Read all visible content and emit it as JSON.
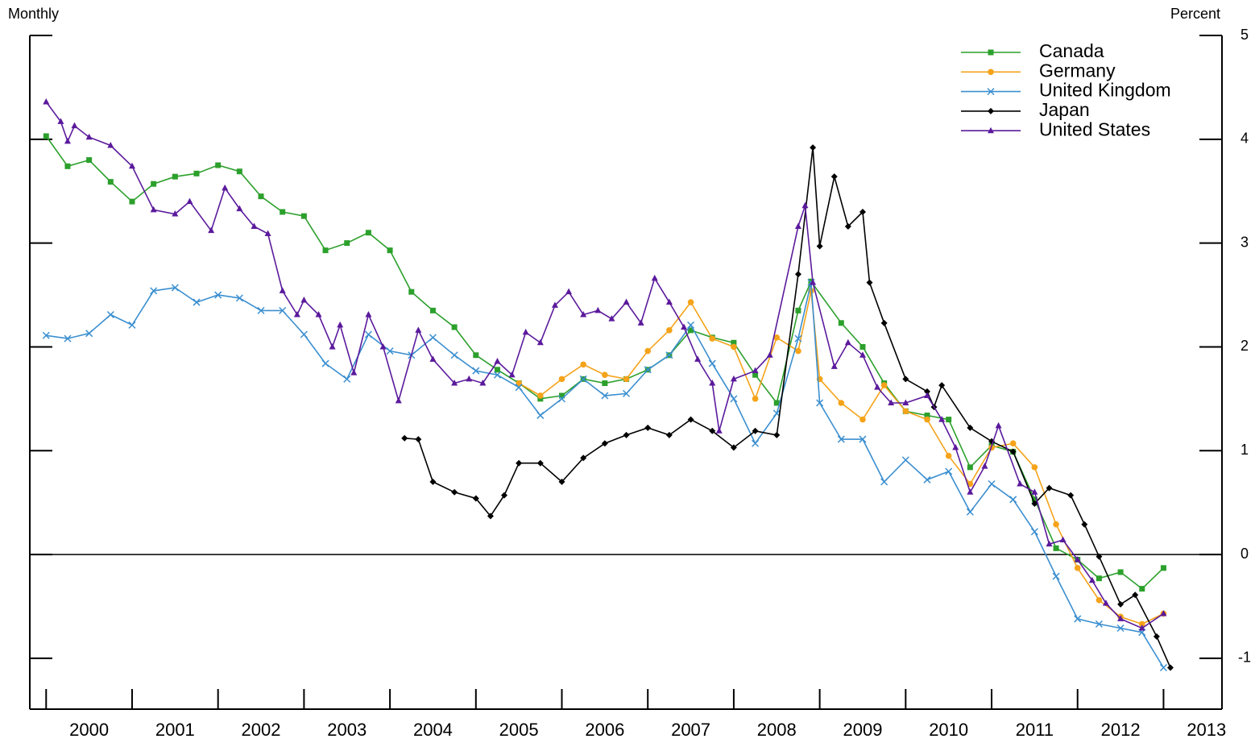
{
  "chart_data": {
    "type": "line",
    "subtitle_left": "Monthly",
    "y_axis_label": "Percent",
    "xlim": [
      1999.81,
      2013.68
    ],
    "xticks": [
      2000,
      2001,
      2002,
      2003,
      2004,
      2005,
      2006,
      2007,
      2008,
      2009,
      2010,
      2011,
      2012,
      2013
    ],
    "ylim": [
      -1.49,
      5
    ],
    "yticks": [
      -1,
      0,
      1,
      2,
      3,
      4,
      5
    ],
    "zero_line": true,
    "legend": "upper-right",
    "series": [
      {
        "name": "Canada",
        "color": "#2ca02c",
        "marker": "square",
        "x": [
          2000.0,
          2000.25,
          2000.5,
          2000.75,
          2001.0,
          2001.25,
          2001.5,
          2001.75,
          2002.0,
          2002.25,
          2002.5,
          2002.75,
          2003.0,
          2003.25,
          2003.5,
          2003.75,
          2004.0,
          2004.25,
          2004.5,
          2004.75,
          2005.0,
          2005.25,
          2005.5,
          2005.75,
          2006.0,
          2006.25,
          2006.5,
          2006.75,
          2007.0,
          2007.25,
          2007.5,
          2007.75,
          2008.0,
          2008.25,
          2008.5,
          2008.75,
          2008.9,
          2009.25,
          2009.5,
          2009.75,
          2010.0,
          2010.25,
          2010.5,
          2010.75,
          2011.0,
          2011.25,
          2011.5,
          2011.75,
          2012.0,
          2012.25,
          2012.5,
          2012.75,
          2013.0
        ],
        "values": [
          4.03,
          3.74,
          3.8,
          3.59,
          3.4,
          3.57,
          3.64,
          3.67,
          3.75,
          3.69,
          3.45,
          3.3,
          3.26,
          2.93,
          3.0,
          3.1,
          2.93,
          2.53,
          2.35,
          2.19,
          1.92,
          1.78,
          1.65,
          1.5,
          1.53,
          1.69,
          1.65,
          1.69,
          1.78,
          1.92,
          2.16,
          2.09,
          2.04,
          1.73,
          1.46,
          2.35,
          2.63,
          2.23,
          2.0,
          1.65,
          1.38,
          1.34,
          1.3,
          0.84,
          1.05,
          0.99,
          0.53,
          0.06,
          -0.05,
          -0.23,
          -0.17,
          -0.33,
          -0.13
        ]
      },
      {
        "name": "Germany",
        "color": "#f5a31a",
        "marker": "circle",
        "x": [
          2005.5,
          2005.75,
          2006.0,
          2006.25,
          2006.5,
          2006.75,
          2007.0,
          2007.25,
          2007.5,
          2007.75,
          2008.0,
          2008.25,
          2008.5,
          2008.75,
          2008.9,
          2009.0,
          2009.25,
          2009.5,
          2009.75,
          2010.0,
          2010.25,
          2010.5,
          2010.75,
          2011.0,
          2011.25,
          2011.5,
          2011.75,
          2012.0,
          2012.25,
          2012.5,
          2012.75,
          2013.0
        ],
        "values": [
          1.65,
          1.53,
          1.69,
          1.83,
          1.73,
          1.69,
          1.96,
          2.16,
          2.43,
          2.08,
          2.0,
          1.5,
          2.09,
          1.96,
          2.54,
          1.69,
          1.46,
          1.3,
          1.63,
          1.38,
          1.3,
          0.95,
          0.68,
          1.03,
          1.07,
          0.84,
          0.29,
          -0.13,
          -0.44,
          -0.6,
          -0.67,
          -0.57
        ]
      },
      {
        "name": "United Kingdom",
        "color": "#3b8fd0",
        "marker": "x",
        "x": [
          2000.0,
          2000.25,
          2000.5,
          2000.75,
          2001.0,
          2001.25,
          2001.5,
          2001.75,
          2002.0,
          2002.25,
          2002.5,
          2002.75,
          2003.0,
          2003.25,
          2003.5,
          2003.75,
          2004.0,
          2004.25,
          2004.5,
          2004.75,
          2005.0,
          2005.25,
          2005.5,
          2005.75,
          2006.0,
          2006.25,
          2006.5,
          2006.75,
          2007.0,
          2007.25,
          2007.5,
          2007.75,
          2008.0,
          2008.25,
          2008.5,
          2008.75,
          2008.9,
          2009.0,
          2009.25,
          2009.5,
          2009.75,
          2010.0,
          2010.25,
          2010.5,
          2010.75,
          2011.0,
          2011.25,
          2011.5,
          2011.75,
          2012.0,
          2012.25,
          2012.5,
          2012.75,
          2013.0
        ],
        "values": [
          2.11,
          2.08,
          2.13,
          2.31,
          2.21,
          2.54,
          2.57,
          2.43,
          2.5,
          2.47,
          2.35,
          2.35,
          2.12,
          1.84,
          1.69,
          2.12,
          1.96,
          1.92,
          2.09,
          1.92,
          1.77,
          1.73,
          1.61,
          1.34,
          1.5,
          1.69,
          1.53,
          1.55,
          1.78,
          1.92,
          2.21,
          1.84,
          1.5,
          1.07,
          1.36,
          2.08,
          2.62,
          1.46,
          1.11,
          1.11,
          0.7,
          0.91,
          0.72,
          0.8,
          0.41,
          0.68,
          0.53,
          0.22,
          -0.21,
          -0.62,
          -0.67,
          -0.71,
          -0.75,
          -1.09
        ]
      },
      {
        "name": "Japan",
        "color": "#000000",
        "marker": "diamond",
        "x": [
          2004.17,
          2004.33,
          2004.5,
          2004.75,
          2005.0,
          2005.17,
          2005.33,
          2005.5,
          2005.75,
          2006.0,
          2006.25,
          2006.5,
          2006.75,
          2007.0,
          2007.25,
          2007.5,
          2007.75,
          2008.0,
          2008.25,
          2008.5,
          2008.75,
          2008.92,
          2009.0,
          2009.17,
          2009.33,
          2009.5,
          2009.58,
          2009.75,
          2010.0,
          2010.25,
          2010.33,
          2010.42,
          2010.75,
          2011.0,
          2011.25,
          2011.5,
          2011.67,
          2011.92,
          2012.08,
          2012.25,
          2012.5,
          2012.67,
          2012.92,
          2013.08
        ],
        "values": [
          1.12,
          1.11,
          0.7,
          0.6,
          0.54,
          0.37,
          0.57,
          0.88,
          0.88,
          0.7,
          0.93,
          1.07,
          1.15,
          1.22,
          1.15,
          1.3,
          1.19,
          1.03,
          1.19,
          1.15,
          2.7,
          3.92,
          2.97,
          3.64,
          3.16,
          3.3,
          2.62,
          2.23,
          1.69,
          1.57,
          1.42,
          1.63,
          1.22,
          1.09,
          0.99,
          0.49,
          0.64,
          0.57,
          0.29,
          -0.02,
          -0.48,
          -0.39,
          -0.79,
          -1.09
        ]
      },
      {
        "name": "United States",
        "color": "#5b1a9c",
        "marker": "triangle",
        "x": [
          2000.0,
          2000.17,
          2000.25,
          2000.33,
          2000.5,
          2000.75,
          2001.0,
          2001.25,
          2001.5,
          2001.67,
          2001.92,
          2002.08,
          2002.25,
          2002.42,
          2002.58,
          2002.75,
          2002.92,
          2003.0,
          2003.17,
          2003.33,
          2003.42,
          2003.58,
          2003.75,
          2003.92,
          2004.1,
          2004.33,
          2004.5,
          2004.75,
          2004.92,
          2005.08,
          2005.25,
          2005.42,
          2005.58,
          2005.75,
          2005.92,
          2006.08,
          2006.25,
          2006.42,
          2006.58,
          2006.75,
          2006.92,
          2007.08,
          2007.25,
          2007.42,
          2007.58,
          2007.75,
          2007.83,
          2008.0,
          2008.25,
          2008.42,
          2008.75,
          2008.83,
          2008.92,
          2009.17,
          2009.33,
          2009.5,
          2009.67,
          2009.83,
          2010.0,
          2010.25,
          2010.42,
          2010.58,
          2010.75,
          2010.92,
          2011.08,
          2011.33,
          2011.5,
          2011.67,
          2011.83,
          2012.0,
          2012.17,
          2012.33,
          2012.5,
          2012.75,
          2013.0
        ],
        "values": [
          4.36,
          4.17,
          3.98,
          4.13,
          4.02,
          3.94,
          3.74,
          3.32,
          3.28,
          3.4,
          3.12,
          3.53,
          3.33,
          3.16,
          3.09,
          2.54,
          2.31,
          2.45,
          2.31,
          2.0,
          2.21,
          1.75,
          2.31,
          2.0,
          1.48,
          2.16,
          1.88,
          1.65,
          1.69,
          1.65,
          1.86,
          1.73,
          2.14,
          2.04,
          2.4,
          2.53,
          2.31,
          2.35,
          2.27,
          2.43,
          2.23,
          2.66,
          2.43,
          2.19,
          1.88,
          1.65,
          1.19,
          1.69,
          1.77,
          1.92,
          3.16,
          3.36,
          2.62,
          1.81,
          2.04,
          1.92,
          1.61,
          1.46,
          1.46,
          1.53,
          1.3,
          1.03,
          0.6,
          0.85,
          1.24,
          0.68,
          0.6,
          0.1,
          0.14,
          -0.05,
          -0.25,
          -0.47,
          -0.62,
          -0.71,
          -0.57
        ]
      }
    ]
  }
}
